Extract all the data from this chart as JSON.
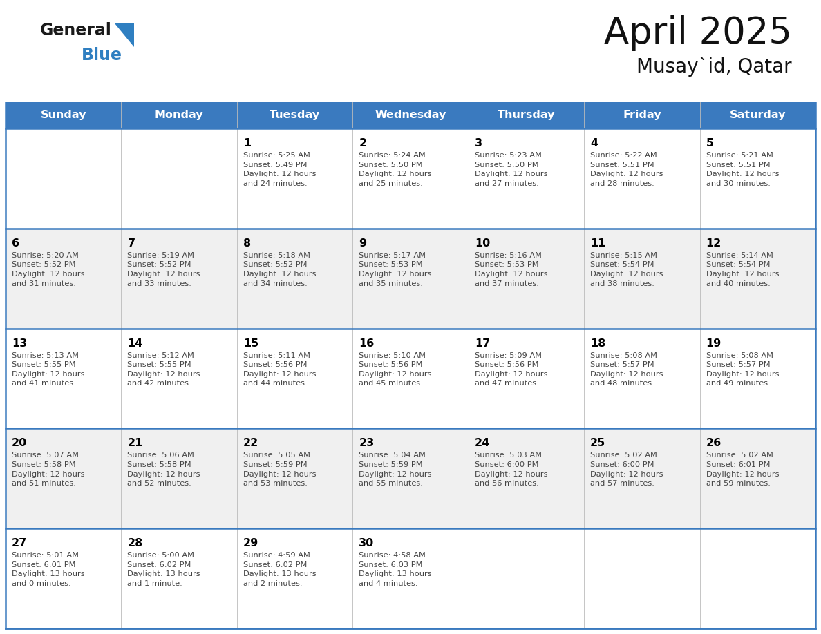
{
  "title": "April 2025",
  "subtitle": "Musay`id, Qatar",
  "header_color": "#3a7abf",
  "header_text_color": "#ffffff",
  "weekdays": [
    "Sunday",
    "Monday",
    "Tuesday",
    "Wednesday",
    "Thursday",
    "Friday",
    "Saturday"
  ],
  "bg_color": "#ffffff",
  "cell_bg_even": "#f0f0f0",
  "cell_bg_odd": "#ffffff",
  "separator_color": "#3a7abf",
  "day_number_color": "#000000",
  "text_color": "#444444",
  "calendar": [
    [
      {
        "day": "",
        "info": ""
      },
      {
        "day": "",
        "info": ""
      },
      {
        "day": "1",
        "info": "Sunrise: 5:25 AM\nSunset: 5:49 PM\nDaylight: 12 hours\nand 24 minutes."
      },
      {
        "day": "2",
        "info": "Sunrise: 5:24 AM\nSunset: 5:50 PM\nDaylight: 12 hours\nand 25 minutes."
      },
      {
        "day": "3",
        "info": "Sunrise: 5:23 AM\nSunset: 5:50 PM\nDaylight: 12 hours\nand 27 minutes."
      },
      {
        "day": "4",
        "info": "Sunrise: 5:22 AM\nSunset: 5:51 PM\nDaylight: 12 hours\nand 28 minutes."
      },
      {
        "day": "5",
        "info": "Sunrise: 5:21 AM\nSunset: 5:51 PM\nDaylight: 12 hours\nand 30 minutes."
      }
    ],
    [
      {
        "day": "6",
        "info": "Sunrise: 5:20 AM\nSunset: 5:52 PM\nDaylight: 12 hours\nand 31 minutes."
      },
      {
        "day": "7",
        "info": "Sunrise: 5:19 AM\nSunset: 5:52 PM\nDaylight: 12 hours\nand 33 minutes."
      },
      {
        "day": "8",
        "info": "Sunrise: 5:18 AM\nSunset: 5:52 PM\nDaylight: 12 hours\nand 34 minutes."
      },
      {
        "day": "9",
        "info": "Sunrise: 5:17 AM\nSunset: 5:53 PM\nDaylight: 12 hours\nand 35 minutes."
      },
      {
        "day": "10",
        "info": "Sunrise: 5:16 AM\nSunset: 5:53 PM\nDaylight: 12 hours\nand 37 minutes."
      },
      {
        "day": "11",
        "info": "Sunrise: 5:15 AM\nSunset: 5:54 PM\nDaylight: 12 hours\nand 38 minutes."
      },
      {
        "day": "12",
        "info": "Sunrise: 5:14 AM\nSunset: 5:54 PM\nDaylight: 12 hours\nand 40 minutes."
      }
    ],
    [
      {
        "day": "13",
        "info": "Sunrise: 5:13 AM\nSunset: 5:55 PM\nDaylight: 12 hours\nand 41 minutes."
      },
      {
        "day": "14",
        "info": "Sunrise: 5:12 AM\nSunset: 5:55 PM\nDaylight: 12 hours\nand 42 minutes."
      },
      {
        "day": "15",
        "info": "Sunrise: 5:11 AM\nSunset: 5:56 PM\nDaylight: 12 hours\nand 44 minutes."
      },
      {
        "day": "16",
        "info": "Sunrise: 5:10 AM\nSunset: 5:56 PM\nDaylight: 12 hours\nand 45 minutes."
      },
      {
        "day": "17",
        "info": "Sunrise: 5:09 AM\nSunset: 5:56 PM\nDaylight: 12 hours\nand 47 minutes."
      },
      {
        "day": "18",
        "info": "Sunrise: 5:08 AM\nSunset: 5:57 PM\nDaylight: 12 hours\nand 48 minutes."
      },
      {
        "day": "19",
        "info": "Sunrise: 5:08 AM\nSunset: 5:57 PM\nDaylight: 12 hours\nand 49 minutes."
      }
    ],
    [
      {
        "day": "20",
        "info": "Sunrise: 5:07 AM\nSunset: 5:58 PM\nDaylight: 12 hours\nand 51 minutes."
      },
      {
        "day": "21",
        "info": "Sunrise: 5:06 AM\nSunset: 5:58 PM\nDaylight: 12 hours\nand 52 minutes."
      },
      {
        "day": "22",
        "info": "Sunrise: 5:05 AM\nSunset: 5:59 PM\nDaylight: 12 hours\nand 53 minutes."
      },
      {
        "day": "23",
        "info": "Sunrise: 5:04 AM\nSunset: 5:59 PM\nDaylight: 12 hours\nand 55 minutes."
      },
      {
        "day": "24",
        "info": "Sunrise: 5:03 AM\nSunset: 6:00 PM\nDaylight: 12 hours\nand 56 minutes."
      },
      {
        "day": "25",
        "info": "Sunrise: 5:02 AM\nSunset: 6:00 PM\nDaylight: 12 hours\nand 57 minutes."
      },
      {
        "day": "26",
        "info": "Sunrise: 5:02 AM\nSunset: 6:01 PM\nDaylight: 12 hours\nand 59 minutes."
      }
    ],
    [
      {
        "day": "27",
        "info": "Sunrise: 5:01 AM\nSunset: 6:01 PM\nDaylight: 13 hours\nand 0 minutes."
      },
      {
        "day": "28",
        "info": "Sunrise: 5:00 AM\nSunset: 6:02 PM\nDaylight: 13 hours\nand 1 minute."
      },
      {
        "day": "29",
        "info": "Sunrise: 4:59 AM\nSunset: 6:02 PM\nDaylight: 13 hours\nand 2 minutes."
      },
      {
        "day": "30",
        "info": "Sunrise: 4:58 AM\nSunset: 6:03 PM\nDaylight: 13 hours\nand 4 minutes."
      },
      {
        "day": "",
        "info": ""
      },
      {
        "day": "",
        "info": ""
      },
      {
        "day": "",
        "info": ""
      }
    ]
  ],
  "logo_general_color": "#1a1a1a",
  "logo_blue_color": "#2f7fc1"
}
